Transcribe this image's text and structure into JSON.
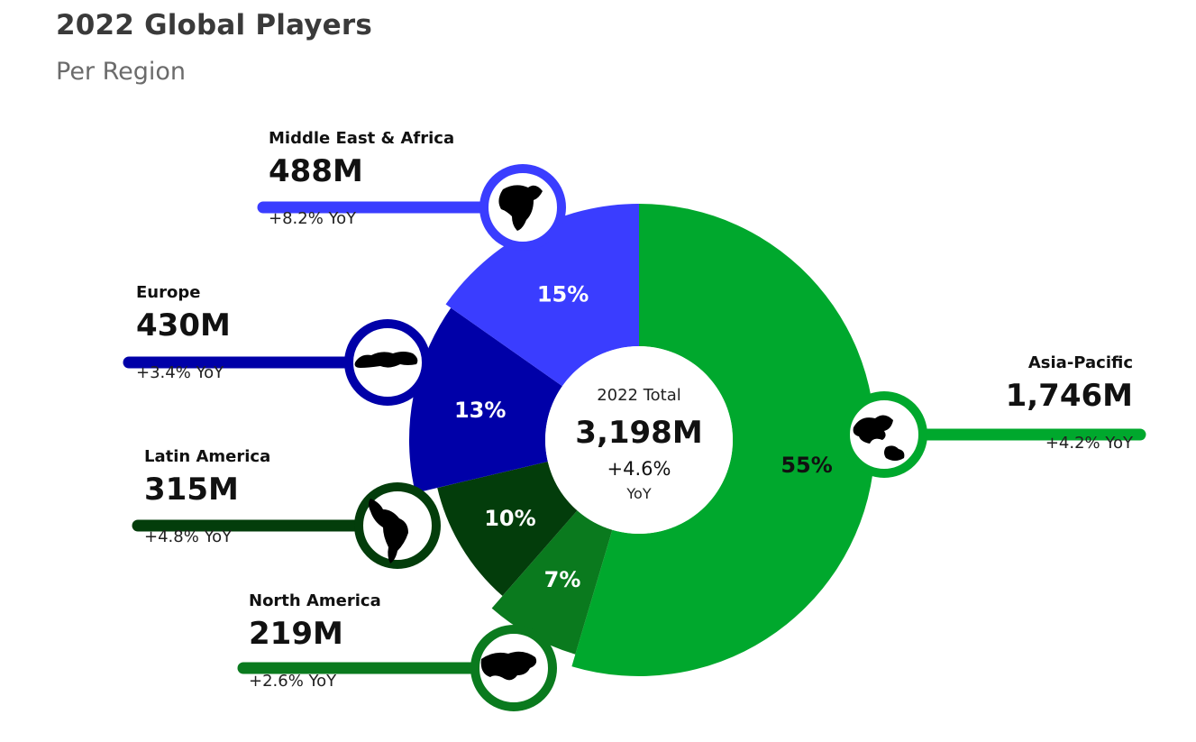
{
  "title": "2022 Global Players",
  "subtitle": "Per Region",
  "center": {
    "label": "2022 Total",
    "value": "3,198M",
    "yoy": "+4.6%",
    "yoy_label": "YoY"
  },
  "chart_data": {
    "type": "pie",
    "title": "2022 Global Players",
    "subtitle": "Per Region",
    "total": 3198,
    "series": [
      {
        "name": "Asia-Pacific",
        "value": 1746,
        "value_label": "1,746M",
        "share": 55,
        "share_label": "55%",
        "yoy": "+4.2% YoY",
        "color": "#00a82d",
        "icon": "asia-pacific-map-icon"
      },
      {
        "name": "North America",
        "value": 219,
        "value_label": "219M",
        "share": 7,
        "share_label": "7%",
        "yoy": "+2.6% YoY",
        "color": "#0a7a1e",
        "icon": "north-america-map-icon"
      },
      {
        "name": "Latin America",
        "value": 315,
        "value_label": "315M",
        "share": 10,
        "share_label": "10%",
        "yoy": "+4.8% YoY",
        "color": "#033d0b",
        "icon": "latin-america-map-icon"
      },
      {
        "name": "Europe",
        "value": 430,
        "value_label": "430M",
        "share": 13,
        "share_label": "13%",
        "yoy": "+3.4% YoY",
        "color": "#0000a8",
        "icon": "europe-map-icon"
      },
      {
        "name": "Middle East & Africa",
        "value": 488,
        "value_label": "488M",
        "share": 15,
        "share_label": "15%",
        "yoy": "+8.2% YoY",
        "color": "#3a3dff",
        "icon": "africa-map-icon"
      }
    ]
  }
}
